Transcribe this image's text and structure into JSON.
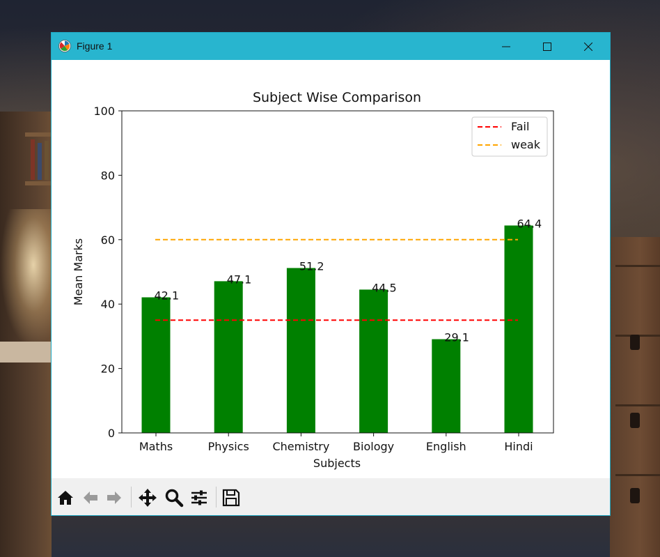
{
  "window": {
    "title": "Figure 1",
    "titlebar_color": "#28b5cf"
  },
  "toolbar": {
    "icons": [
      "home-icon",
      "back-arrow-icon",
      "forward-arrow-icon",
      "pan-icon",
      "zoom-icon",
      "configure-icon",
      "save-icon"
    ]
  },
  "chart_data": {
    "type": "bar",
    "title": "Subject Wise Comparison",
    "xlabel": "Subjects",
    "ylabel": "Mean Marks",
    "categories": [
      "Maths",
      "Physics",
      "Chemistry",
      "Biology",
      "English",
      "Hindi"
    ],
    "values": [
      42.1,
      47.1,
      51.2,
      44.5,
      29.1,
      64.4
    ],
    "value_labels": [
      "42.1",
      "47.1",
      "51.2",
      "44.5",
      "29.1",
      "64.4"
    ],
    "bar_color": "#008000",
    "ylim": [
      0,
      100
    ],
    "yticks": [
      0,
      20,
      40,
      60,
      80,
      100
    ],
    "ytick_labels": [
      "0",
      "20",
      "40",
      "60",
      "80",
      "100"
    ],
    "reference_lines": [
      {
        "name": "Fail",
        "value": 35,
        "color": "#ff0000",
        "style": "dashed"
      },
      {
        "name": "weak",
        "value": 60,
        "color": "#ffa500",
        "style": "dashed"
      }
    ],
    "legend_position": "top-right",
    "grid": false
  }
}
